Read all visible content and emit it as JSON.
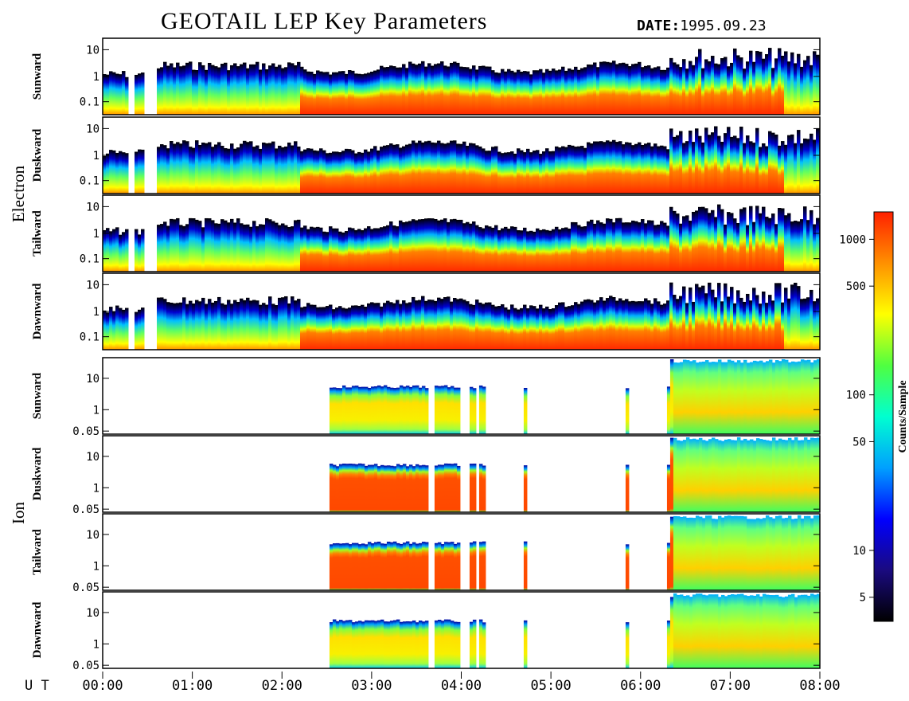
{
  "header": {
    "title": "GEOTAIL LEP Key Parameters",
    "date_label": "DATE:",
    "date_value": "1995.09.23"
  },
  "chart_data": {
    "type": "heatmap",
    "title": "GEOTAIL LEP Key Parameters",
    "x_axis_label": "U T",
    "x_ticks": [
      "00:00",
      "01:00",
      "02:00",
      "03:00",
      "04:00",
      "05:00",
      "06:00",
      "07:00",
      "08:00"
    ],
    "x_range_hours": [
      0,
      8
    ],
    "y_scale": "log",
    "groups": [
      {
        "name": "Electron",
        "panels": [
          {
            "name": "Sunward",
            "y_ticks": [
              "10",
              "1",
              "0.1"
            ]
          },
          {
            "name": "Duskward",
            "y_ticks": [
              "10",
              "1",
              "0.1"
            ]
          },
          {
            "name": "Tailward",
            "y_ticks": [
              "10",
              "1",
              "0.1"
            ]
          },
          {
            "name": "Dawnward",
            "y_ticks": [
              "10",
              "1",
              "0.1"
            ]
          }
        ]
      },
      {
        "name": "Ion",
        "panels": [
          {
            "name": "Sunward",
            "y_ticks": [
              "10",
              "1",
              "0.05"
            ]
          },
          {
            "name": "Duskward",
            "y_ticks": [
              "10",
              "1",
              "0.05"
            ]
          },
          {
            "name": "Tailward",
            "y_ticks": [
              "10",
              "1",
              "0.05"
            ]
          },
          {
            "name": "Dawnward",
            "y_ticks": [
              "10",
              "1",
              "0.05"
            ]
          }
        ]
      }
    ],
    "colorbar": {
      "label": "Counts/Sample",
      "scale": "log",
      "ticks": [
        "1000",
        "500",
        "100",
        "50",
        "10",
        "5"
      ],
      "range": [
        3.5,
        1500
      ],
      "colors": [
        "#000000",
        "#1a0a80",
        "#0000ff",
        "#00a0ff",
        "#00ffd0",
        "#50ff40",
        "#ffff00",
        "#ff9000",
        "#ff2000"
      ]
    }
  }
}
